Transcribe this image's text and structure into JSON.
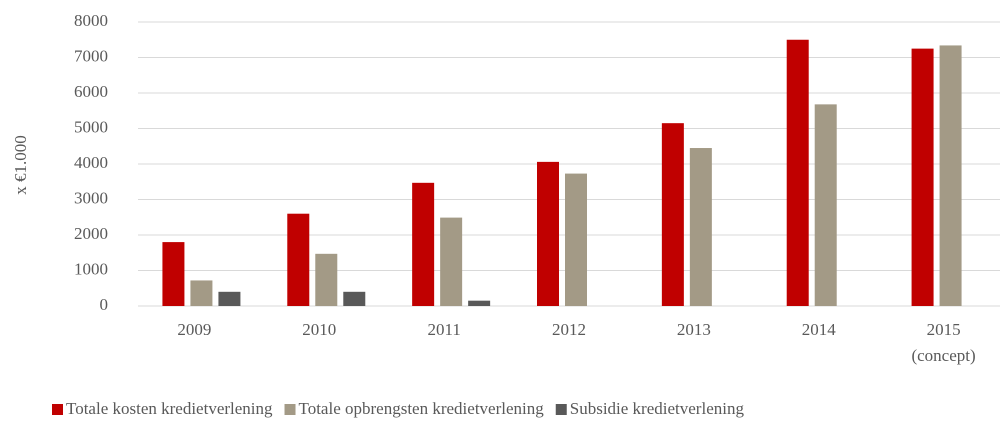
{
  "chart_data": {
    "type": "bar",
    "y_label": "x €1.000",
    "categories": [
      "2009",
      "2010",
      "2011",
      "2012",
      "2013",
      "2014",
      "2015\n(concept)"
    ],
    "series": [
      {
        "name": "Totale kosten kredietverlening",
        "color": "#c00000",
        "values": [
          1800,
          2600,
          3470,
          4060,
          5150,
          7500,
          7250
        ]
      },
      {
        "name": "Totale opbrengsten kredietverlening",
        "color": "#a39a86",
        "values": [
          720,
          1470,
          2490,
          3730,
          4450,
          5680,
          7340
        ]
      },
      {
        "name": "Subsidie kredietverlening",
        "color": "#595959",
        "values": [
          400,
          400,
          150,
          null,
          null,
          null,
          null
        ]
      }
    ],
    "ylim": [
      0,
      8000
    ],
    "yticks": [
      0,
      1000,
      2000,
      3000,
      4000,
      5000,
      6000,
      7000,
      8000
    ],
    "grid": true,
    "legend": "bottom"
  }
}
